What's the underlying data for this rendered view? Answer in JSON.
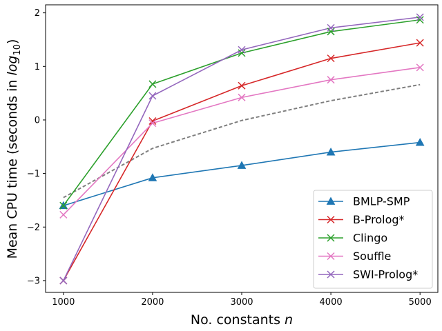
{
  "chart_data": {
    "type": "line",
    "title": "",
    "xlabel": "No. constants ",
    "xlabel_var": "n",
    "ylabel": "Mean CPU time (seconds in ",
    "ylabel_log": "log",
    "ylabel_sub": "10",
    "ylabel_close": ")",
    "x": [
      1000,
      2000,
      3000,
      4000,
      5000
    ],
    "xlim": [
      800,
      5200
    ],
    "ylim": [
      -3.22,
      2.15
    ],
    "xticks": [
      1000,
      2000,
      3000,
      4000,
      5000
    ],
    "yticks": [
      -3,
      -2,
      -1,
      0,
      1,
      2
    ],
    "ytick_labels": [
      "−3",
      "−2",
      "−1",
      "0",
      "1",
      "2"
    ],
    "grid": false,
    "legend_position": "lower-right",
    "series": [
      {
        "name": "BMLP-SMP",
        "color": "#1f77b4",
        "marker": "triangle",
        "values": [
          -1.6,
          -1.08,
          -0.85,
          -0.6,
          -0.42
        ]
      },
      {
        "name": "B-Prolog*",
        "color": "#d62728",
        "marker": "x",
        "values": [
          -3.0,
          -0.02,
          0.64,
          1.15,
          1.44
        ]
      },
      {
        "name": "Clingo",
        "color": "#2ca02c",
        "marker": "x",
        "values": [
          -1.6,
          0.67,
          1.25,
          1.65,
          1.87
        ]
      },
      {
        "name": "Souffle",
        "color": "#e377c2",
        "marker": "x",
        "values": [
          -1.77,
          -0.06,
          0.42,
          0.75,
          0.98
        ]
      },
      {
        "name": "SWI-Prolog*",
        "color": "#9467bd",
        "marker": "x",
        "values": [
          -3.0,
          0.45,
          1.31,
          1.72,
          1.92
        ]
      }
    ],
    "reference_line": {
      "color": "#7f7f7f",
      "style": "dashed",
      "values": [
        -1.45,
        -0.53,
        -0.01,
        0.36,
        0.66
      ]
    }
  }
}
